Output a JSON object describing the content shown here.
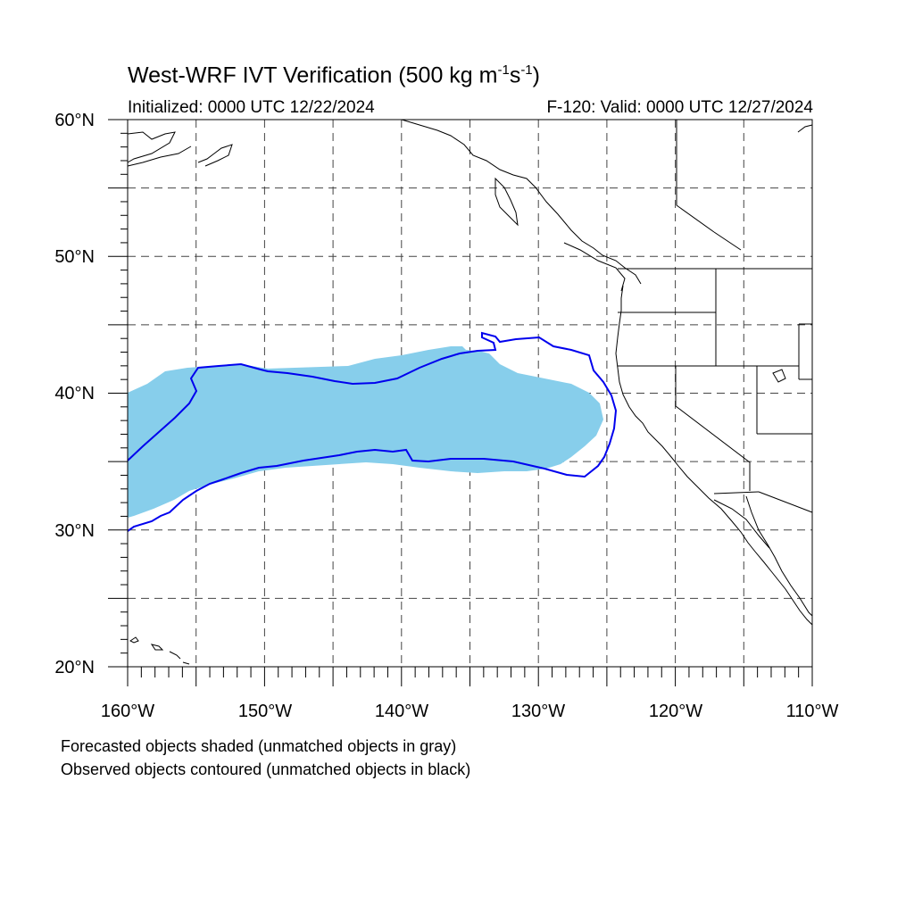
{
  "header": {
    "title_main": "West-WRF IVT Verification (500 kg m",
    "title_exp1": "-1",
    "title_mid": "s",
    "title_exp2": "-1",
    "title_end": ")",
    "initialized": "Initialized: 0000 UTC 12/22/2024",
    "valid": "F-120: Valid: 0000 UTC 12/27/2024"
  },
  "axes": {
    "lat_labels": [
      "60°N",
      "50°N",
      "40°N",
      "30°N",
      "20°N"
    ],
    "lon_labels": [
      "160°W",
      "150°W",
      "140°W",
      "130°W",
      "120°W",
      "110°W"
    ],
    "lon_range": [
      -160,
      -110
    ],
    "lat_range": [
      20,
      60
    ],
    "grid_spacing_deg": 5,
    "grid": true
  },
  "legend": {
    "forecast_note": "Forecasted objects shaded (unmatched objects in gray)",
    "observed_note": "Observed objects contoured (unmatched objects in black)"
  },
  "colors": {
    "forecast_fill": "#87ceeb",
    "observed_contour": "#0000ee",
    "coastline": "#000000",
    "grid": "#444444"
  }
}
